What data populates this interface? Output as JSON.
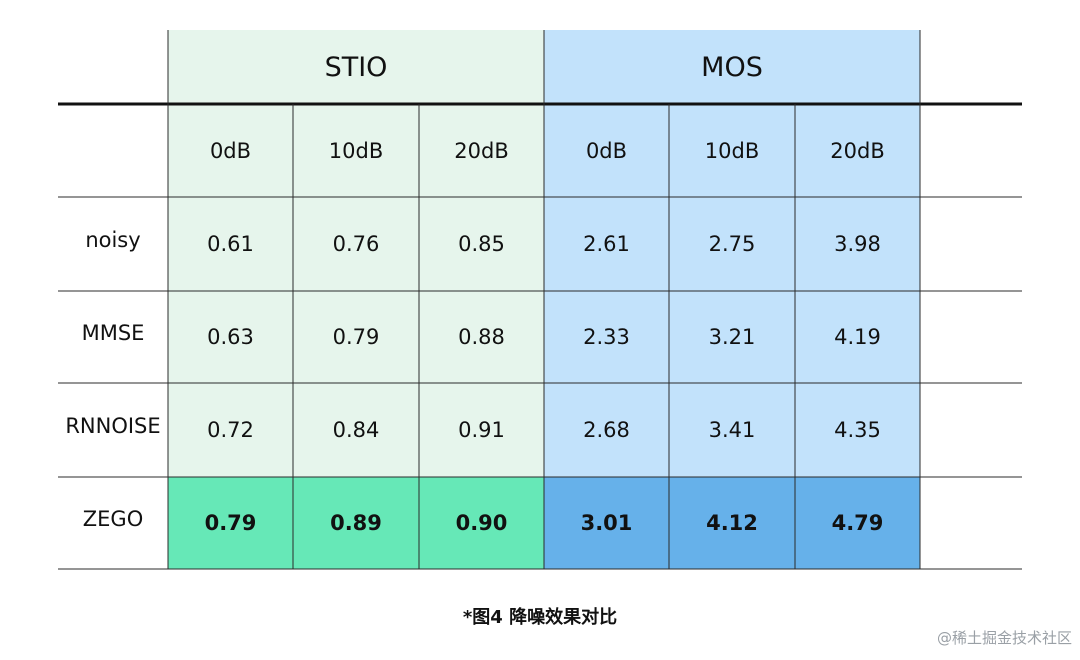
{
  "chart_data": {
    "type": "table",
    "group_headers": [
      {
        "label": "STIO",
        "span": 3
      },
      {
        "label": "MOS",
        "span": 3
      }
    ],
    "columns": [
      "0dB",
      "10dB",
      "20dB",
      "0dB",
      "10dB",
      "20dB"
    ],
    "rows": [
      {
        "label": "noisy",
        "values": [
          "0.61",
          "0.76",
          "0.85",
          "2.61",
          "2.75",
          "3.98"
        ],
        "highlight": false
      },
      {
        "label": "MMSE",
        "values": [
          "0.63",
          "0.79",
          "0.88",
          "2.33",
          "3.21",
          "4.19"
        ],
        "highlight": false
      },
      {
        "label": "RNNOISE",
        "values": [
          "0.72",
          "0.84",
          "0.91",
          "2.68",
          "3.41",
          "4.35"
        ],
        "highlight": false
      },
      {
        "label": "ZEGO",
        "values": [
          "0.79",
          "0.89",
          "0.90",
          "3.01",
          "4.12",
          "4.79"
        ],
        "highlight": true
      }
    ]
  },
  "colors": {
    "stio_bg": "#e6f5ec",
    "mos_bg": "#c2e2fb",
    "stio_highlight": "#66e8b7",
    "mos_highlight": "#66b1ea",
    "grid_line": "#2b2b2b",
    "heavy_rule": "#111111"
  },
  "caption": "*图4 降噪效果对比",
  "watermark": "@稀土掘金技术社区"
}
